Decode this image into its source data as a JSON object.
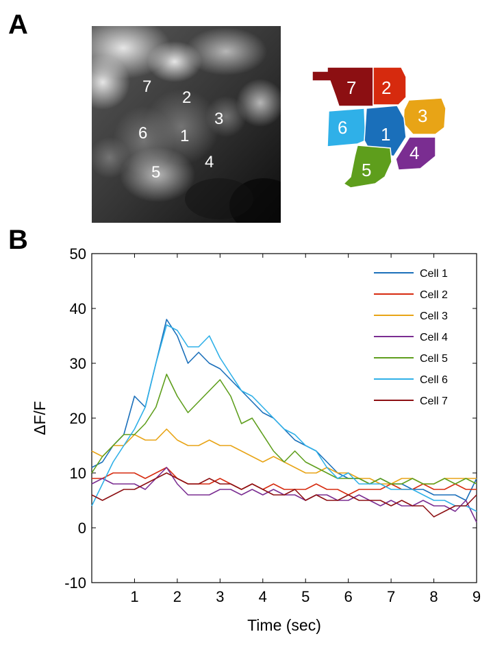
{
  "panels": {
    "a_label": "A",
    "b_label": "B"
  },
  "image_cells": [
    "7",
    "2",
    "3",
    "6",
    "1",
    "4",
    "5"
  ],
  "roi_map": [
    {
      "label": "7",
      "color": "#8c0f12"
    },
    {
      "label": "2",
      "color": "#d62a0e"
    },
    {
      "label": "3",
      "color": "#e8a416"
    },
    {
      "label": "6",
      "color": "#2fb0e8"
    },
    {
      "label": "1",
      "color": "#1a6fba"
    },
    {
      "label": "4",
      "color": "#7a2d91"
    },
    {
      "label": "5",
      "color": "#5e9e1c"
    }
  ],
  "chart_data": {
    "type": "line",
    "title": "",
    "xlabel": "Time (sec)",
    "ylabel": "ΔF/F",
    "xlim": [
      0,
      9
    ],
    "ylim": [
      -10,
      50
    ],
    "xticks": [
      1,
      2,
      3,
      4,
      5,
      6,
      7,
      8,
      9
    ],
    "yticks": [
      -10,
      0,
      10,
      20,
      30,
      40,
      50
    ],
    "legend_position": "top-right",
    "x": [
      0,
      0.25,
      0.5,
      0.75,
      1.0,
      1.25,
      1.5,
      1.75,
      2.0,
      2.25,
      2.5,
      2.75,
      3.0,
      3.25,
      3.5,
      3.75,
      4.0,
      4.25,
      4.5,
      4.75,
      5.0,
      5.25,
      5.5,
      5.75,
      6.0,
      6.25,
      6.5,
      6.75,
      7.0,
      7.25,
      7.5,
      7.75,
      8.0,
      8.25,
      8.5,
      8.75,
      9.0
    ],
    "series": [
      {
        "name": "Cell 1",
        "color": "#1a6fba",
        "values": [
          11,
          12,
          15,
          17,
          24,
          22,
          30,
          38,
          35,
          30,
          32,
          30,
          29,
          27,
          25,
          23,
          21,
          20,
          18,
          16,
          15,
          14,
          12,
          10,
          9,
          9,
          8,
          9,
          8,
          8,
          7,
          7,
          6,
          6,
          6,
          5,
          9
        ]
      },
      {
        "name": "Cell 2",
        "color": "#d62a0e",
        "values": [
          9,
          9,
          10,
          10,
          10,
          9,
          10,
          11,
          9,
          8,
          8,
          8,
          9,
          8,
          7,
          8,
          7,
          8,
          7,
          7,
          7,
          8,
          7,
          7,
          6,
          7,
          7,
          7,
          8,
          7,
          7,
          8,
          7,
          7,
          8,
          7,
          7
        ]
      },
      {
        "name": "Cell 3",
        "color": "#e8a416",
        "values": [
          14,
          13,
          15,
          15,
          17,
          16,
          16,
          18,
          16,
          15,
          15,
          16,
          15,
          15,
          14,
          13,
          12,
          13,
          12,
          11,
          10,
          10,
          11,
          10,
          10,
          9,
          9,
          8,
          8,
          9,
          9,
          8,
          8,
          9,
          9,
          9,
          9
        ]
      },
      {
        "name": "Cell 4",
        "color": "#7a2d91",
        "values": [
          8,
          9,
          8,
          8,
          8,
          7,
          9,
          11,
          8,
          6,
          6,
          6,
          7,
          7,
          6,
          7,
          6,
          7,
          6,
          6,
          5,
          6,
          6,
          5,
          5,
          6,
          5,
          4,
          5,
          4,
          4,
          5,
          4,
          4,
          3,
          5,
          1
        ]
      },
      {
        "name": "Cell 5",
        "color": "#5e9e1c",
        "values": [
          10,
          13,
          15,
          17,
          17,
          19,
          22,
          28,
          24,
          21,
          23,
          25,
          27,
          24,
          19,
          20,
          17,
          14,
          12,
          14,
          12,
          11,
          10,
          9,
          9,
          9,
          8,
          9,
          8,
          8,
          9,
          8,
          8,
          9,
          8,
          9,
          8
        ]
      },
      {
        "name": "Cell 6",
        "color": "#2fb0e8",
        "values": [
          4,
          8,
          12,
          15,
          18,
          22,
          30,
          37,
          36,
          33,
          33,
          35,
          31,
          28,
          25,
          24,
          22,
          20,
          18,
          17,
          15,
          14,
          11,
          9,
          10,
          8,
          8,
          8,
          7,
          7,
          7,
          6,
          5,
          5,
          4,
          4,
          3
        ]
      },
      {
        "name": "Cell 7",
        "color": "#8c0f12",
        "values": [
          6,
          5,
          6,
          7,
          7,
          8,
          9,
          10,
          9,
          8,
          8,
          9,
          8,
          8,
          7,
          8,
          7,
          6,
          6,
          7,
          5,
          6,
          5,
          5,
          6,
          5,
          5,
          5,
          4,
          5,
          4,
          4,
          2,
          3,
          4,
          4,
          6
        ]
      }
    ]
  }
}
